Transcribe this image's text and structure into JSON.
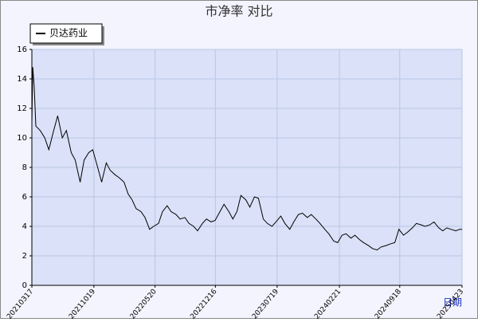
{
  "chart_data": {
    "type": "line",
    "title": "市净率  对比",
    "x_label": "日期",
    "legend_position": "upper left",
    "grid": true,
    "ylim": [
      0,
      16
    ],
    "yticks": [
      0,
      2,
      4,
      6,
      8,
      10,
      12,
      14,
      16
    ],
    "xlim": [
      "20210317",
      "20250423"
    ],
    "xticks": [
      "20210317",
      "20211019",
      "20220520",
      "20221216",
      "20230719",
      "20240221",
      "20240918",
      "20250423"
    ],
    "x": [
      "20210317",
      "20210320",
      "20210325",
      "20210331",
      "20210415",
      "20210501",
      "20210515",
      "20210601",
      "20210615",
      "20210701",
      "20210715",
      "20210801",
      "20210815",
      "20210901",
      "20210915",
      "20211001",
      "20211015",
      "20211101",
      "20211115",
      "20211201",
      "20211215",
      "20220101",
      "20220115",
      "20220201",
      "20220215",
      "20220301",
      "20220315",
      "20220401",
      "20220415",
      "20220501",
      "20220515",
      "20220601",
      "20220615",
      "20220701",
      "20220715",
      "20220801",
      "20220815",
      "20220901",
      "20220915",
      "20221001",
      "20221015",
      "20221101",
      "20221115",
      "20221201",
      "20221215",
      "20230101",
      "20230115",
      "20230201",
      "20230215",
      "20230301",
      "20230315",
      "20230401",
      "20230415",
      "20230501",
      "20230515",
      "20230601",
      "20230615",
      "20230701",
      "20230715",
      "20230801",
      "20230815",
      "20230901",
      "20230915",
      "20231001",
      "20231015",
      "20231101",
      "20231115",
      "20231201",
      "20231215",
      "20240101",
      "20240115",
      "20240201",
      "20240215",
      "20240301",
      "20240315",
      "20240401",
      "20240415",
      "20240501",
      "20240515",
      "20240601",
      "20240615",
      "20240701",
      "20240715",
      "20240801",
      "20240815",
      "20240901",
      "20240915",
      "20241001",
      "20241015",
      "20241101",
      "20241115",
      "20241201",
      "20241215",
      "20250101",
      "20250115",
      "20250201",
      "20250215",
      "20250301",
      "20250315",
      "20250401",
      "20250415",
      "20250423"
    ],
    "series": [
      {
        "name": "贝达药业",
        "color": "#000000",
        "values": [
          11,
          14.8,
          13.5,
          10.8,
          10.5,
          10,
          9.2,
          10.5,
          11.5,
          10,
          10.5,
          9,
          8.5,
          7,
          8.5,
          9,
          9.2,
          8,
          7,
          8.3,
          7.8,
          7.5,
          7.3,
          7,
          6.2,
          5.8,
          5.2,
          5,
          4.6,
          3.8,
          4,
          4.2,
          5,
          5.4,
          5,
          4.8,
          4.5,
          4.6,
          4.2,
          4,
          3.7,
          4.2,
          4.5,
          4.3,
          4.4,
          5,
          5.5,
          5,
          4.5,
          5,
          6.1,
          5.8,
          5.3,
          6,
          5.9,
          4.5,
          4.2,
          4,
          4.3,
          4.7,
          4.2,
          3.8,
          4.3,
          4.8,
          4.9,
          4.6,
          4.8,
          4.5,
          4.2,
          3.8,
          3.5,
          3,
          2.9,
          3.4,
          3.5,
          3.2,
          3.4,
          3.1,
          2.9,
          2.7,
          2.5,
          2.4,
          2.6,
          2.7,
          2.8,
          2.9,
          3.8,
          3.4,
          3.6,
          3.9,
          4.2,
          4.1,
          4,
          4.1,
          4.3,
          3.9,
          3.7,
          3.9,
          3.8,
          3.7,
          3.8,
          3.8
        ]
      }
    ]
  }
}
